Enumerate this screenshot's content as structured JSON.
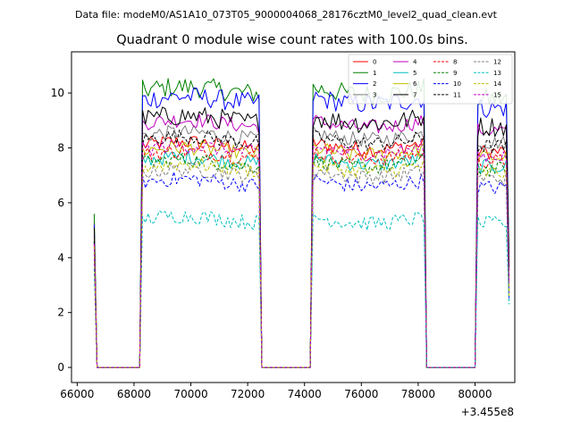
{
  "suptitle": "Data file: modeM0/AS1A10_073T05_9000004068_28176cztM0_level2_quad_clean.evt",
  "chart_data": {
    "type": "line",
    "title": "Quadrant 0 module wise count rates with 100.0s bins.",
    "xlabel": "",
    "ylabel": "",
    "x_offset_label": "+3.455e8",
    "xlim": [
      65800,
      81400
    ],
    "ylim": [
      -0.55,
      11.5
    ],
    "x_ticks": [
      66000,
      68000,
      70000,
      72000,
      74000,
      76000,
      78000,
      80000
    ],
    "x_tick_labels": [
      "66000",
      "68000",
      "70000",
      "72000",
      "74000",
      "76000",
      "78000",
      "80000"
    ],
    "y_ticks": [
      0,
      2,
      4,
      6,
      8,
      10
    ],
    "y_tick_labels": [
      "0",
      "2",
      "4",
      "6",
      "8",
      "10"
    ],
    "grid": false,
    "legend_position": "top-right",
    "segments_note": "three on-source intervals: 68300-72450, 74250-78250, 80100-81200 (x offset units)",
    "series": [
      {
        "name": "0",
        "color": "#ff0000",
        "dash": "solid",
        "level": 8.1,
        "start": 5.3
      },
      {
        "name": "1",
        "color": "#008000",
        "dash": "solid",
        "level": 10.1,
        "start": 5.6
      },
      {
        "name": "2",
        "color": "#0000ff",
        "dash": "solid",
        "level": 9.75,
        "start": 5.2
      },
      {
        "name": "3",
        "color": "#808080",
        "dash": "solid",
        "level": 8.45,
        "start": 5.0
      },
      {
        "name": "4",
        "color": "#bf00bf",
        "dash": "solid",
        "level": 8.9,
        "start": 4.8
      },
      {
        "name": "5",
        "color": "#00bfbf",
        "dash": "solid",
        "level": 7.55,
        "start": 4.6
      },
      {
        "name": "6",
        "color": "#bfbf00",
        "dash": "solid",
        "level": 7.9,
        "start": 4.7
      },
      {
        "name": "7",
        "color": "#000000",
        "dash": "solid",
        "level": 9.05,
        "start": 5.1
      },
      {
        "name": "8",
        "color": "#ff0000",
        "dash": "dashed",
        "level": 7.75,
        "start": 4.5
      },
      {
        "name": "9",
        "color": "#008000",
        "dash": "dashed",
        "level": 7.45,
        "start": 4.4
      },
      {
        "name": "10",
        "color": "#0000ff",
        "dash": "dashed",
        "level": 6.75,
        "start": 4.2
      },
      {
        "name": "11",
        "color": "#000000",
        "dash": "dashed",
        "level": 8.3,
        "start": 4.6
      },
      {
        "name": "12",
        "color": "#808080",
        "dash": "dashed",
        "level": 7.1,
        "start": 4.3
      },
      {
        "name": "13",
        "color": "#00bfbf",
        "dash": "dashed",
        "level": 5.4,
        "start": 3.6
      },
      {
        "name": "14",
        "color": "#bfbf00",
        "dash": "dashed",
        "level": 7.3,
        "start": 4.4
      },
      {
        "name": "15",
        "color": "#bf00bf",
        "dash": "dashed",
        "level": 7.95,
        "start": 4.5
      }
    ]
  }
}
